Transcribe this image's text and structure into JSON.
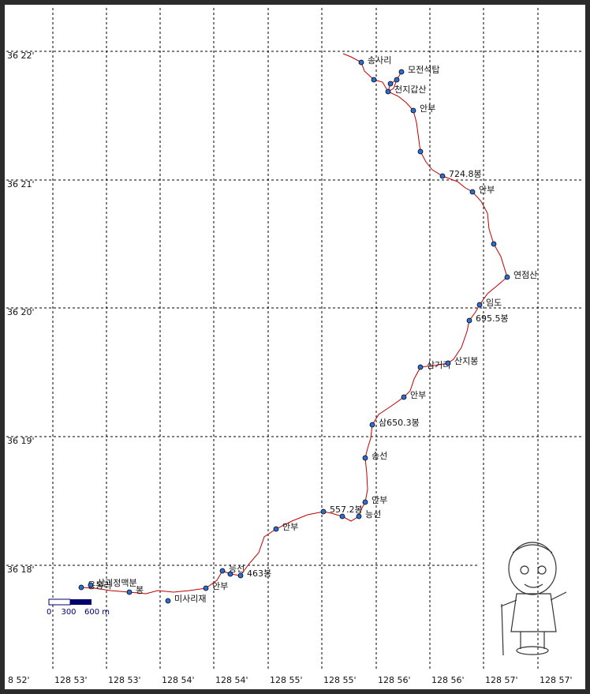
{
  "latitude_labels": [
    "36 22'",
    "36 21'",
    "36 20'",
    "36 19'",
    "36 18'"
  ],
  "longitude_labels": [
    "8 52'",
    "128 53'",
    "128 53'",
    "128 54'",
    "128 54'",
    "128 55'",
    "128 55'",
    "128 56'",
    "128 56'",
    "128 57'",
    "128 57'"
  ],
  "waypoints": [
    "송사리",
    "모전석탑",
    "천지갑산",
    "안부",
    "724.8봉",
    "안부",
    "연점산",
    "임도",
    "695.5봉",
    "삼거리",
    "산지봉",
    "안부",
    "삼650.3봉",
    "송선",
    "안부",
    "능선",
    "557.2봉",
    "안부",
    "능선",
    "463봉",
    "안부",
    "미사리재",
    "봉",
    "용봉리",
    "삼괴정맥분"
  ],
  "scale_bar": [
    "0",
    "300",
    "600 m"
  ]
}
